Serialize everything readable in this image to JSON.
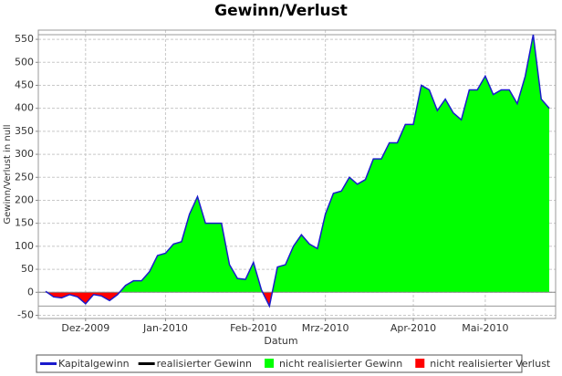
{
  "chart_data": {
    "type": "area",
    "title": "Gewinn/Verlust",
    "x_label": "Datum",
    "y_label": "Gewinn/Verlust in null",
    "categories": [
      null,
      null,
      null,
      null,
      null,
      "Dez-2009",
      null,
      null,
      null,
      null,
      null,
      null,
      null,
      null,
      null,
      "Jan-2010",
      null,
      null,
      null,
      null,
      null,
      null,
      null,
      null,
      null,
      null,
      "Feb-2010",
      null,
      null,
      null,
      null,
      null,
      null,
      null,
      null,
      "Mrz-2010",
      null,
      null,
      null,
      null,
      null,
      null,
      null,
      null,
      null,
      null,
      "Apr-2010",
      null,
      null,
      null,
      null,
      null,
      null,
      null,
      null,
      "Mai-2010",
      null,
      null,
      null,
      null,
      null,
      null,
      null,
      null
    ],
    "values": [
      2,
      -10,
      -12,
      -5,
      -10,
      -25,
      -5,
      -8,
      -18,
      -5,
      15,
      25,
      25,
      45,
      80,
      85,
      105,
      110,
      170,
      208,
      150,
      150,
      150,
      60,
      30,
      28,
      65,
      5,
      -30,
      55,
      60,
      100,
      125,
      105,
      95,
      170,
      215,
      220,
      250,
      235,
      245,
      290,
      290,
      325,
      325,
      365,
      365,
      450,
      440,
      395,
      420,
      390,
      375,
      440,
      440,
      470,
      430,
      440,
      440,
      410,
      470,
      560,
      420,
      400
    ],
    "legend": [
      {
        "name": "Kapitalgewinn",
        "color": "#1a1acc"
      },
      {
        "name": "realisierter Gewinn",
        "color": "#000000"
      },
      {
        "name": "nicht realisierter Gewinn",
        "color": "#00ff00"
      },
      {
        "name": "nicht realisierter Verlust",
        "color": "#ff0000"
      }
    ],
    "ylim": [
      -57,
      570
    ],
    "yticks": [
      -50,
      0,
      50,
      100,
      150,
      200,
      250,
      300,
      350,
      400,
      450,
      500,
      550
    ],
    "grid": true
  }
}
